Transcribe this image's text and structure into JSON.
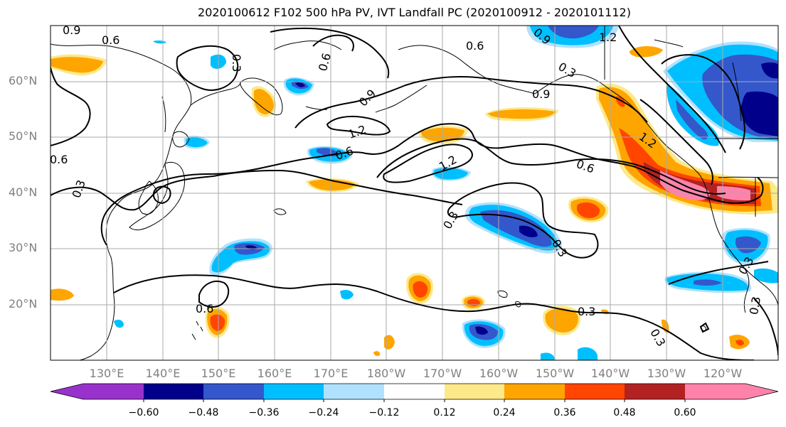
{
  "title": "2020100612 F102 500 hPa PV, IVT Landfall PC (2020100912 - 2020101112)",
  "map": {
    "lat_labels": [
      "60°N",
      "50°N",
      "40°N",
      "30°N",
      "20°N"
    ],
    "lon_labels": [
      "130°E",
      "140°E",
      "150°E",
      "160°E",
      "170°E",
      "180°W",
      "170°W",
      "160°W",
      "150°W",
      "140°W",
      "130°W",
      "120°W"
    ],
    "pv_contour_labels": [
      "0.9",
      "0.6",
      "0.3",
      "0.6",
      "0.6",
      "0.9",
      "1.2",
      "0.6",
      "0.9",
      "1.2",
      "1.2",
      "0.6",
      "0.9",
      "1.2",
      "0.3",
      "0.3",
      "0.3",
      "0.6",
      "0.3",
      "0.3",
      "0.3",
      "0.3",
      "0.6",
      "0.3"
    ]
  },
  "colorbar": {
    "ticks": [
      "−0.60",
      "−0.48",
      "−0.36",
      "−0.24",
      "−0.12",
      "0.12",
      "0.24",
      "0.36",
      "0.48",
      "0.60"
    ],
    "colors": [
      "#9932cc",
      "#00008b",
      "#3457cc",
      "#00bfff",
      "#b0e2ff",
      "#ffffff",
      "#fde98a",
      "#ffa500",
      "#ff4500",
      "#b22222",
      "#ff82ab"
    ]
  }
}
